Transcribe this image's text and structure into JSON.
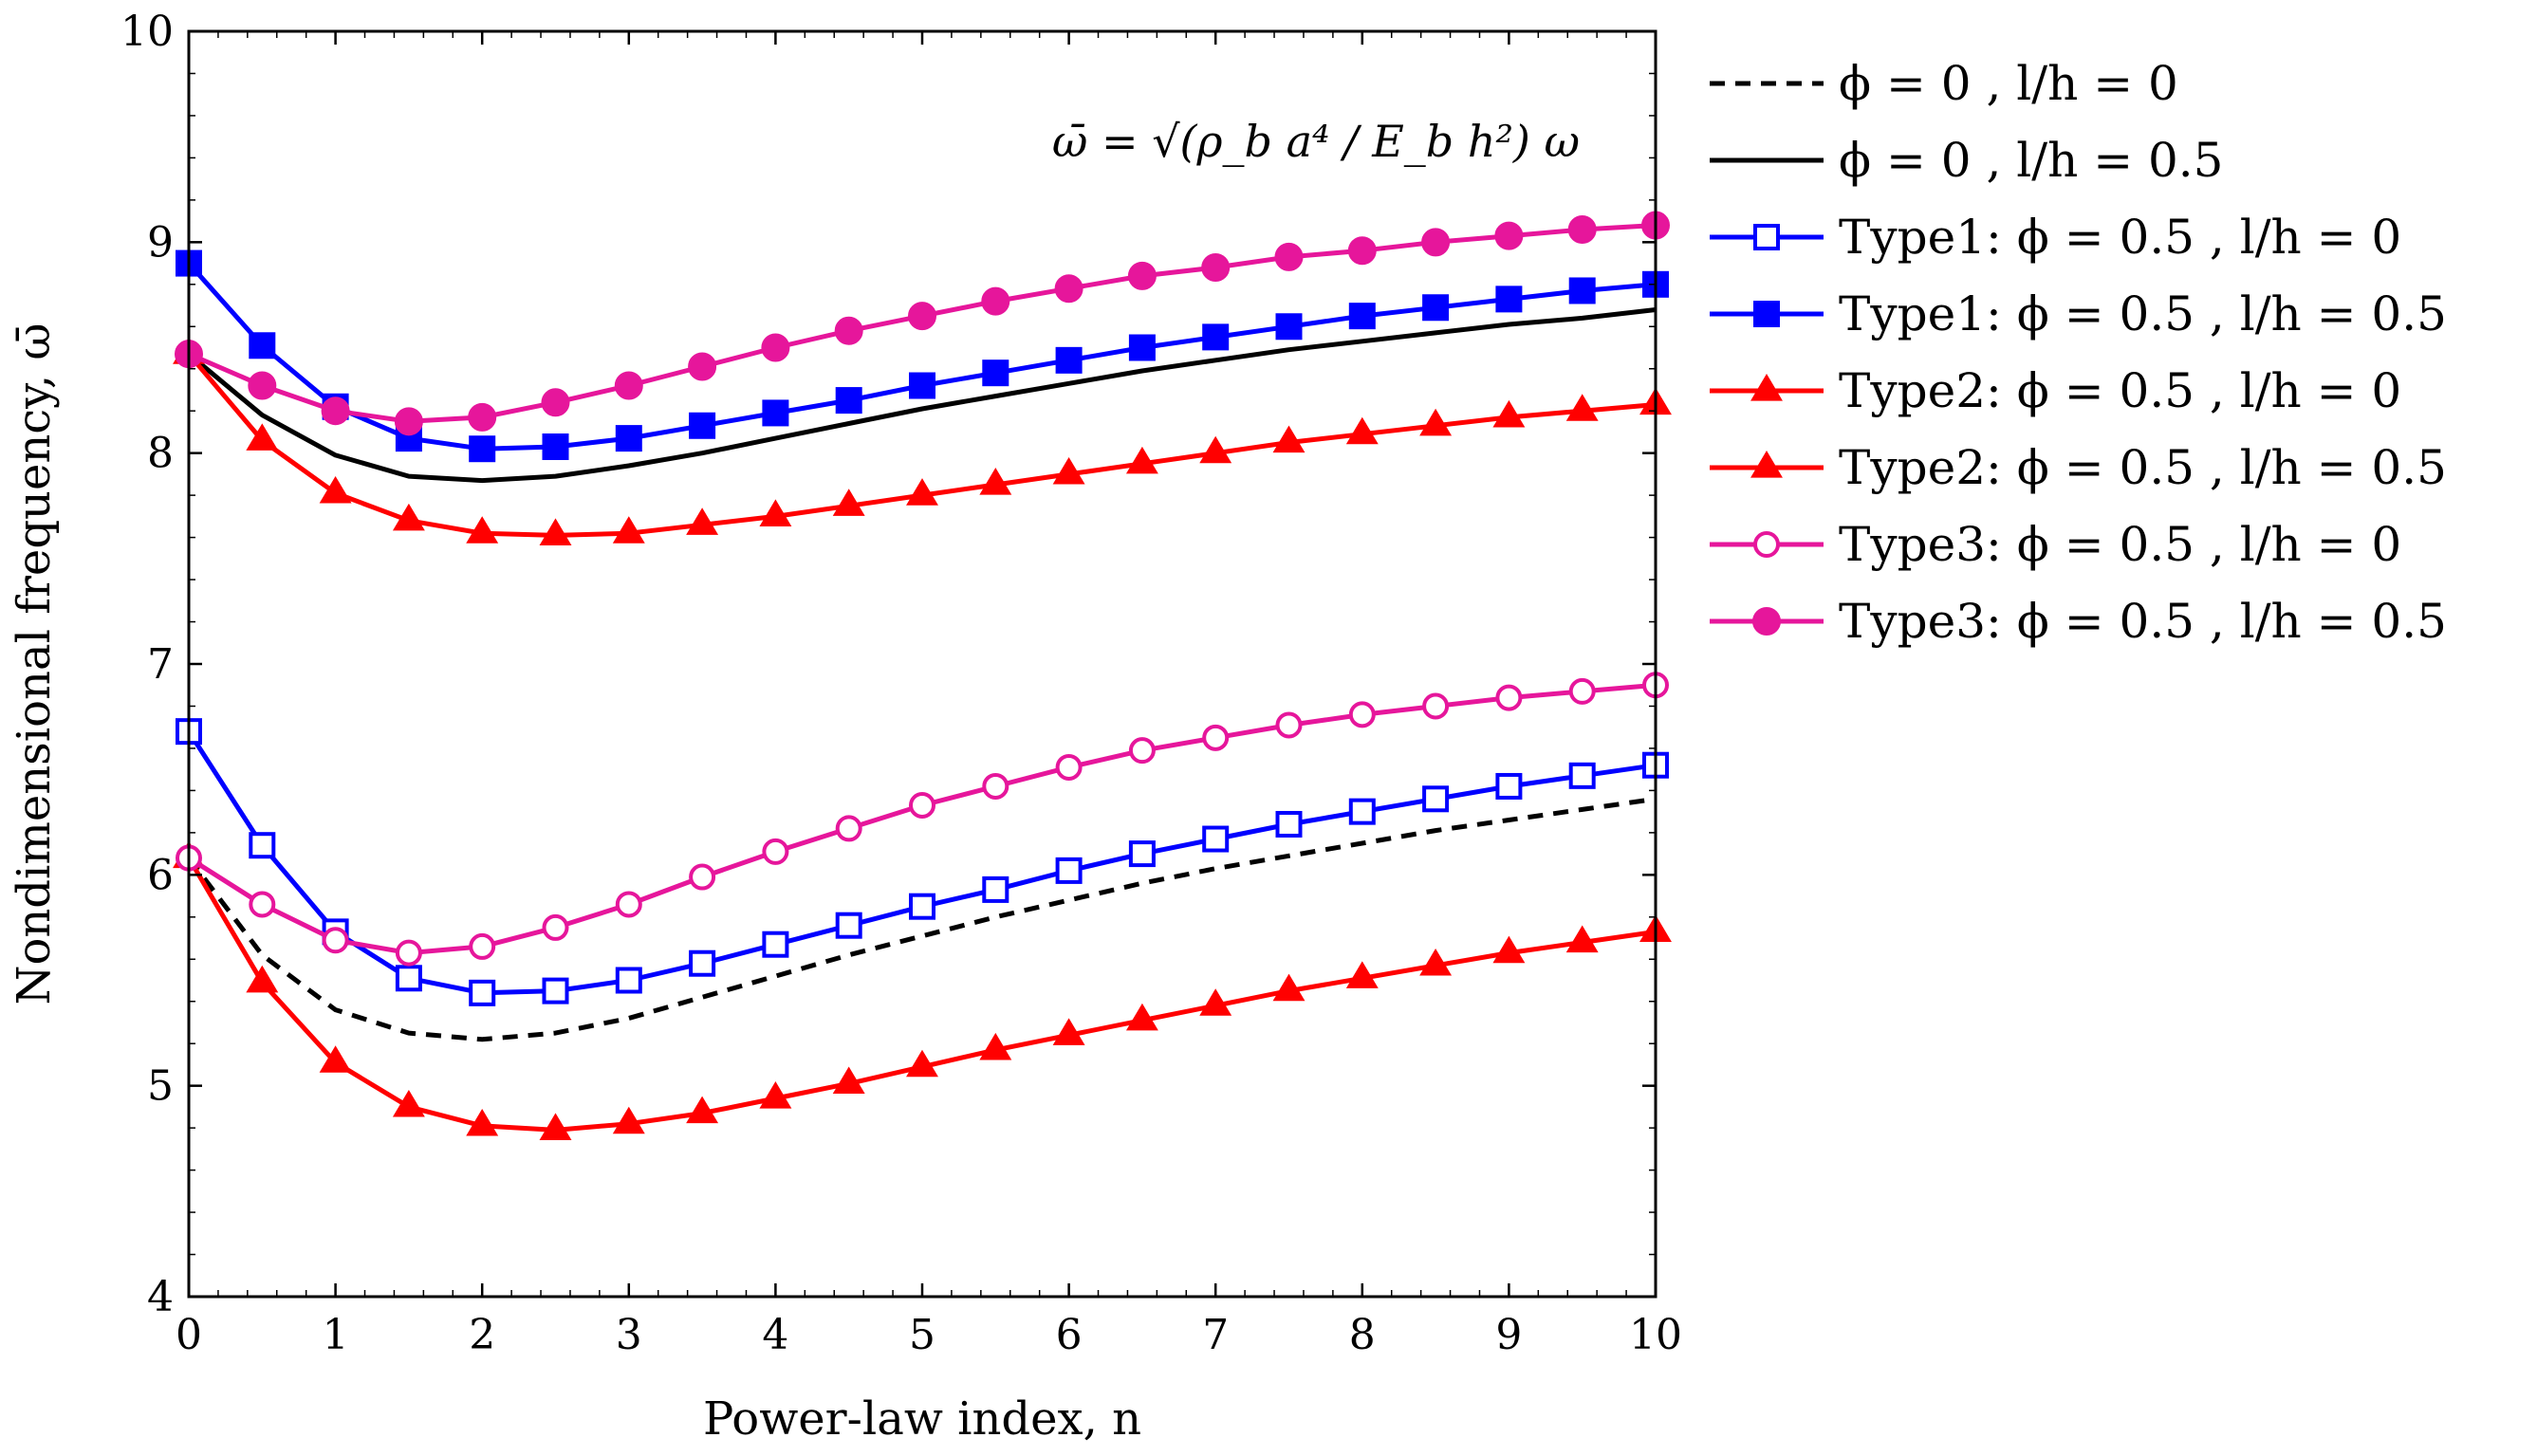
{
  "chart_data": {
    "type": "line",
    "title": "",
    "xlabel": "Power-law index, n",
    "ylabel": "Nondimensional frequency, ω̄",
    "xlim": [
      0,
      10
    ],
    "ylim": [
      4,
      10
    ],
    "xticks": [
      "0",
      "1",
      "2",
      "3",
      "4",
      "5",
      "6",
      "7",
      "8",
      "9",
      "10"
    ],
    "yticks": [
      "4",
      "5",
      "6",
      "7",
      "8",
      "9",
      "10"
    ],
    "annotation": "ω̄ = √(ρ_b a⁴ / E_b h²) ω",
    "x": [
      0,
      0.5,
      1,
      1.5,
      2,
      2.5,
      3,
      3.5,
      4,
      4.5,
      5,
      5.5,
      6,
      6.5,
      7,
      7.5,
      8,
      8.5,
      9,
      9.5,
      10
    ],
    "series": [
      {
        "name": "ϕ = 0 , l/h = 0",
        "color": "#000000",
        "dash": true,
        "marker": "none",
        "values": [
          6.08,
          5.62,
          5.36,
          5.25,
          5.22,
          5.25,
          5.32,
          5.42,
          5.52,
          5.62,
          5.71,
          5.8,
          5.88,
          5.96,
          6.03,
          6.09,
          6.15,
          6.21,
          6.26,
          6.31,
          6.36
        ]
      },
      {
        "name": "ϕ = 0 , l/h = 0.5",
        "color": "#000000",
        "dash": false,
        "marker": "none",
        "values": [
          8.47,
          8.18,
          7.99,
          7.89,
          7.87,
          7.89,
          7.94,
          8.0,
          8.07,
          8.14,
          8.21,
          8.27,
          8.33,
          8.39,
          8.44,
          8.49,
          8.53,
          8.57,
          8.61,
          8.64,
          8.68
        ]
      },
      {
        "name": "Type1: ϕ = 0.5 , l/h = 0",
        "color": "#0000ff",
        "dash": false,
        "marker": "square-open",
        "values": [
          6.68,
          6.14,
          5.73,
          5.51,
          5.44,
          5.45,
          5.5,
          5.58,
          5.67,
          5.76,
          5.85,
          5.93,
          6.02,
          6.1,
          6.17,
          6.24,
          6.3,
          6.36,
          6.42,
          6.47,
          6.52
        ]
      },
      {
        "name": "Type1: ϕ = 0.5 , l/h = 0.5",
        "color": "#0000ff",
        "dash": false,
        "marker": "square-filled",
        "values": [
          8.9,
          8.51,
          8.22,
          8.07,
          8.02,
          8.03,
          8.07,
          8.13,
          8.19,
          8.25,
          8.32,
          8.38,
          8.44,
          8.5,
          8.55,
          8.6,
          8.65,
          8.69,
          8.73,
          8.77,
          8.8
        ]
      },
      {
        "name": "Type2: ϕ = 0.5 , l/h = 0",
        "color": "#ff0000",
        "dash": false,
        "marker": "triangle-filled",
        "values": [
          6.08,
          5.49,
          5.11,
          4.9,
          4.81,
          4.79,
          4.82,
          4.87,
          4.94,
          5.01,
          5.09,
          5.17,
          5.24,
          5.31,
          5.38,
          5.45,
          5.51,
          5.57,
          5.63,
          5.68,
          5.73
        ]
      },
      {
        "name": "Type2: ϕ = 0.5 , l/h = 0.5",
        "color": "#ff0000",
        "dash": false,
        "marker": "triangle-filled",
        "values": [
          8.47,
          8.06,
          7.81,
          7.68,
          7.62,
          7.61,
          7.62,
          7.66,
          7.7,
          7.75,
          7.8,
          7.85,
          7.9,
          7.95,
          8.0,
          8.05,
          8.09,
          8.13,
          8.17,
          8.2,
          8.23
        ]
      },
      {
        "name": "Type3: ϕ = 0.5 , l/h = 0",
        "color": "#e6169b",
        "dash": false,
        "marker": "circle-open",
        "values": [
          6.08,
          5.86,
          5.69,
          5.63,
          5.66,
          5.75,
          5.86,
          5.99,
          6.11,
          6.22,
          6.33,
          6.42,
          6.51,
          6.59,
          6.65,
          6.71,
          6.76,
          6.8,
          6.84,
          6.87,
          6.9
        ]
      },
      {
        "name": "Type3: ϕ = 0.5 , l/h = 0.5",
        "color": "#e6169b",
        "dash": false,
        "marker": "circle-filled",
        "values": [
          8.47,
          8.32,
          8.2,
          8.15,
          8.17,
          8.24,
          8.32,
          8.41,
          8.5,
          8.58,
          8.65,
          8.72,
          8.78,
          8.84,
          8.88,
          8.93,
          8.96,
          9.0,
          9.03,
          9.06,
          9.08
        ]
      }
    ],
    "grid": false,
    "legend_position": "outside-right"
  }
}
